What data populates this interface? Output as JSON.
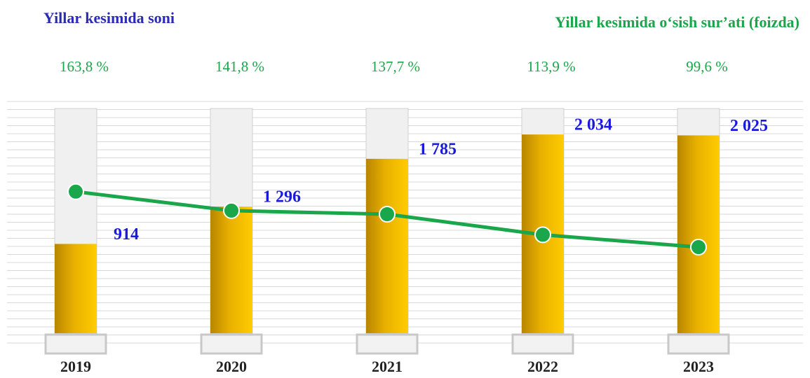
{
  "chart_data": {
    "type": "bar",
    "categories": [
      "2019",
      "2020",
      "2021",
      "2022",
      "2023"
    ],
    "ylim": [
      0,
      2300
    ],
    "y2lim": [
      0,
      260
    ],
    "series": [
      {
        "name": "Yillar kesimida soni",
        "type": "bar",
        "color": "#f2bd00",
        "values": [
          914,
          1296,
          1785,
          2034,
          2025
        ],
        "value_labels": [
          "914",
          "1 296",
          "1 785",
          "2 034",
          "2 025"
        ]
      },
      {
        "name": "Yillar kesimida o‘sish sur’ati (foizda)",
        "type": "line",
        "axis": "y2",
        "color": "#1aa64a",
        "values": [
          163.8,
          141.8,
          137.7,
          113.9,
          99.6
        ],
        "value_labels": [
          "163,8 %",
          "141,8 %",
          "137,7 %",
          "113,9 %",
          "99,6 %"
        ]
      }
    ]
  }
}
